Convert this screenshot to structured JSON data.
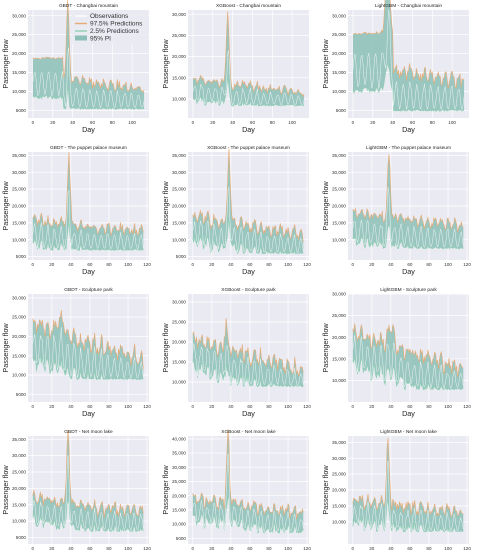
{
  "chart_data": {
    "type": "line",
    "legend": {
      "placement": "top-center",
      "entries": [
        {
          "label": "Observations",
          "color": "#ffffff",
          "kind": "line"
        },
        {
          "label": "97.5% Predictions",
          "color": "#e8aa73",
          "kind": "line"
        },
        {
          "label": "2.5% Predictions",
          "color": "#8fd0b3",
          "kind": "line"
        },
        {
          "label": "95% PI",
          "color": "#8cbfb7",
          "kind": "area"
        }
      ]
    },
    "colors": {
      "band": "#8cbfb7",
      "upper": "#e8aa73",
      "lower": "#8fd0b3",
      "axes_bg": "#eaeaf2"
    },
    "panels": [
      {
        "title": "GBDT - Changbai mountain",
        "xlabel": "Day",
        "ylabel": "Passenger flow",
        "xticks": [
          0,
          20,
          40,
          60,
          80,
          100
        ],
        "xlim": [
          -5,
          117
        ],
        "yticks": [
          5000,
          10000,
          15000,
          20000,
          25000,
          30000
        ],
        "ytick_labels": [
          "5000",
          "10,000",
          "15,000",
          "20,000",
          "25,000",
          "30,000"
        ],
        "ylim": [
          3000,
          31500
        ],
        "profile": {
          "n": 113,
          "base": 9000,
          "floor": 5500,
          "trend": -3500,
          "band": 9500,
          "noise": 1800,
          "peaks": [
            {
              "x": 35,
              "h": 21000,
              "w": 2
            }
          ],
          "plateau": {
            "until": 30,
            "hi": 18500
          }
        }
      },
      {
        "title": "XGBoost - Changbai mountain",
        "xlabel": "Day",
        "ylabel": "Passenger flow",
        "xticks": [
          0,
          20,
          40,
          60,
          80,
          100
        ],
        "xlim": [
          -5,
          117
        ],
        "yticks": [
          10000,
          15000,
          20000,
          25000,
          30000
        ],
        "ytick_labels": [
          "10,000",
          "15,000",
          "20,000",
          "25,000",
          "30,000"
        ],
        "ylim": [
          5500,
          31000
        ],
        "profile": {
          "n": 113,
          "base": 12000,
          "floor": 8500,
          "trend": -3000,
          "band": 4500,
          "noise": 1500,
          "peaks": [
            {
              "x": 35,
              "h": 17000,
              "w": 2
            }
          ],
          "plateau": null
        }
      },
      {
        "title": "LightGBM - Changbai mountain",
        "xlabel": "Day",
        "ylabel": "Passenger flow",
        "xticks": [
          0,
          20,
          40,
          60,
          80,
          100
        ],
        "xlim": [
          -5,
          117
        ],
        "yticks": [
          5000,
          10000,
          15000,
          20000,
          25000,
          30000
        ],
        "ytick_labels": [
          "5000",
          "10,000",
          "15,000",
          "20,000",
          "25,000",
          "30,000"
        ],
        "ylim": [
          3000,
          31500
        ],
        "profile": {
          "n": 113,
          "base": 9500,
          "floor": 5000,
          "trend": -4000,
          "band": 14000,
          "noise": 2500,
          "peaks": [
            {
              "x": 35,
              "h": 19000,
              "w": 3
            }
          ],
          "plateau": {
            "until": 40,
            "hi": 25000
          }
        }
      },
      {
        "title": "GBDT - The puppet palace museum",
        "xlabel": "Day",
        "ylabel": "Passenger flow",
        "xticks": [
          0,
          20,
          40,
          60,
          80,
          100,
          120
        ],
        "xlim": [
          -5,
          122
        ],
        "yticks": [
          5000,
          10000,
          15000,
          20000,
          25000,
          30000,
          35000
        ],
        "ytick_labels": [
          "5000",
          "10,000",
          "15,000",
          "20,000",
          "25,000",
          "30,000",
          "35,000"
        ],
        "ylim": [
          4000,
          36000
        ],
        "profile": {
          "n": 117,
          "base": 12000,
          "floor": 7000,
          "trend": -3500,
          "band": 7000,
          "noise": 2200,
          "peaks": [
            {
              "x": 38,
              "h": 20000,
              "w": 2
            }
          ],
          "plateau": null
        }
      },
      {
        "title": "XGBoost - The puppet palace museum",
        "xlabel": "Day",
        "ylabel": "Passenger flow",
        "xticks": [
          0,
          20,
          40,
          60,
          80,
          100,
          120
        ],
        "xlim": [
          -5,
          122
        ],
        "yticks": [
          5000,
          10000,
          15000,
          20000,
          25000,
          30000,
          35000
        ],
        "ytick_labels": [
          "5000",
          "10,000",
          "15,000",
          "20,000",
          "25,000",
          "30,000",
          "35,000"
        ],
        "ylim": [
          4000,
          36000
        ],
        "profile": {
          "n": 117,
          "base": 13000,
          "floor": 6000,
          "trend": -5500,
          "band": 7000,
          "noise": 2600,
          "peaks": [
            {
              "x": 38,
              "h": 20000,
              "w": 2
            }
          ],
          "plateau": null
        }
      },
      {
        "title": "LightGBM - The puppet palace museum",
        "xlabel": "Day",
        "ylabel": "Passenger flow",
        "xticks": [
          0,
          20,
          40,
          60,
          80,
          100,
          120
        ],
        "xlim": [
          -5,
          122
        ],
        "yticks": [
          10000,
          15000,
          20000,
          25000,
          30000,
          35000
        ],
        "ytick_labels": [
          "10,000",
          "15,000",
          "20,000",
          "25,000",
          "30,000",
          "35,000"
        ],
        "ylim": [
          4000,
          36000
        ],
        "profile": {
          "n": 117,
          "base": 13500,
          "floor": 7500,
          "trend": -4000,
          "band": 8000,
          "noise": 2300,
          "peaks": [
            {
              "x": 38,
              "h": 19000,
              "w": 2
            }
          ],
          "plateau": null
        }
      },
      {
        "title": "GBDT - Sculpture park",
        "xlabel": "Day",
        "ylabel": "Passenger flow",
        "xticks": [
          0,
          20,
          40,
          60,
          80,
          100,
          120
        ],
        "xlim": [
          -5,
          122
        ],
        "yticks": [
          5000,
          10000,
          15000,
          20000,
          25000,
          30000
        ],
        "ytick_labels": [
          "5000",
          "10,000",
          "15,000",
          "20,000",
          "25,000",
          "30,000"
        ],
        "ylim": [
          3000,
          31000
        ],
        "profile": {
          "n": 117,
          "base": 18000,
          "floor": 9000,
          "trend": -9000,
          "band": 9000,
          "noise": 3200,
          "peaks": [
            {
              "x": 30,
              "h": 4000,
              "w": 5
            }
          ],
          "plateau": null
        }
      },
      {
        "title": "XGBoost - Sculpture park",
        "xlabel": "Day",
        "ylabel": "Passenger flow",
        "xticks": [
          0,
          20,
          40,
          60,
          80,
          100,
          120
        ],
        "xlim": [
          -5,
          122
        ],
        "yticks": [
          10000,
          15000,
          20000,
          25000,
          30000
        ],
        "ytick_labels": [
          "10,000",
          "15,000",
          "20,000",
          "25,000",
          "30,000"
        ],
        "ylim": [
          5000,
          32000
        ],
        "profile": {
          "n": 117,
          "base": 17000,
          "floor": 9000,
          "trend": -8000,
          "band": 6500,
          "noise": 2800,
          "peaks": [
            {
              "x": 35,
              "h": 6000,
              "w": 2
            }
          ],
          "plateau": null
        }
      },
      {
        "title": "LightGBM - Sculpture park",
        "xlabel": "Day",
        "ylabel": "Passenger flow",
        "xticks": [
          0,
          20,
          40,
          60,
          80,
          100,
          120
        ],
        "xlim": [
          -5,
          122
        ],
        "yticks": [
          10000,
          15000,
          20000,
          25000,
          30000
        ],
        "ytick_labels": [
          "10,000",
          "15,000",
          "20,000",
          "25,000",
          "30,000"
        ],
        "ylim": [
          5000,
          30000
        ],
        "profile": {
          "n": 117,
          "base": 17000,
          "floor": 8000,
          "trend": -8500,
          "band": 7000,
          "noise": 2600,
          "peaks": [
            {
              "x": 40,
              "h": 5000,
              "w": 4
            }
          ],
          "plateau": null
        }
      },
      {
        "title": "GBDT - Net moon lake",
        "xlabel": "Day",
        "ylabel": "Passenger flow",
        "xticks": [
          0,
          20,
          40,
          60,
          80,
          100,
          120
        ],
        "xlim": [
          -5,
          122
        ],
        "yticks": [
          5000,
          10000,
          15000,
          20000,
          25000,
          30000,
          35000
        ],
        "ytick_labels": [
          "5000",
          "10,000",
          "15,000",
          "20,000",
          "25,000",
          "30,000",
          "35,000"
        ],
        "ylim": [
          3000,
          36000
        ],
        "profile": {
          "n": 117,
          "base": 13000,
          "floor": 7000,
          "trend": -4000,
          "band": 6500,
          "noise": 2800,
          "peaks": [
            {
              "x": 37,
              "h": 21000,
              "w": 2
            }
          ],
          "plateau": null
        }
      },
      {
        "title": "XGBoost - Net moon lake",
        "xlabel": "Day",
        "ylabel": "Passenger flow",
        "xticks": [
          0,
          20,
          40,
          60,
          80,
          100,
          120
        ],
        "xlim": [
          -5,
          122
        ],
        "yticks": [
          5000,
          10000,
          15000,
          20000,
          25000,
          30000,
          35000,
          40000
        ],
        "ytick_labels": [
          "5000",
          "10,000",
          "15,000",
          "20,000",
          "25,000",
          "30,000",
          "35,000",
          "40,000"
        ],
        "ylim": [
          3000,
          41000
        ],
        "profile": {
          "n": 117,
          "base": 15000,
          "floor": 7000,
          "trend": -5000,
          "band": 6500,
          "noise": 3000,
          "peaks": [
            {
              "x": 37,
              "h": 25000,
              "w": 2
            }
          ],
          "plateau": null
        }
      },
      {
        "title": "LightGBM - Net moon lake",
        "xlabel": "Day",
        "ylabel": "Passenger flow",
        "xticks": [
          0,
          20,
          40,
          60,
          80,
          100,
          120
        ],
        "xlim": [
          -5,
          122
        ],
        "yticks": [
          10000,
          15000,
          20000,
          25000,
          30000,
          35000
        ],
        "ytick_labels": [
          "10,000",
          "15,000",
          "20,000",
          "25,000",
          "30,000",
          "35,000"
        ],
        "ylim": [
          3000,
          37000
        ],
        "profile": {
          "n": 117,
          "base": 13000,
          "floor": 7000,
          "trend": -4000,
          "band": 6500,
          "noise": 2800,
          "peaks": [
            {
              "x": 37,
              "h": 20000,
              "w": 2
            }
          ],
          "plateau": null
        }
      }
    ]
  }
}
